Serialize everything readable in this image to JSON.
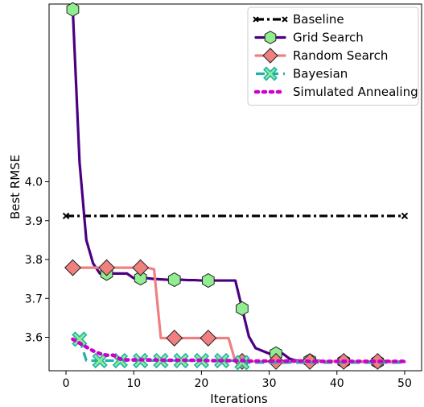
{
  "chart_data": {
    "type": "line",
    "title": "",
    "xlabel": "Iterations",
    "ylabel": "Best RMSE",
    "xlim": [
      -2.5,
      52.5
    ],
    "ylim": [
      3.514,
      4.457
    ],
    "xticks": [
      0,
      10,
      20,
      30,
      40,
      50
    ],
    "yticks": [
      3.6,
      3.7,
      3.8,
      3.9,
      4.0
    ],
    "grid": false,
    "legend_position": "top-right",
    "series": [
      {
        "name": "Baseline",
        "color": "#000000",
        "line_style": "dashdot",
        "marker": "x",
        "x": [
          0,
          50
        ],
        "y": [
          3.912,
          3.912
        ],
        "marker_x": [
          0,
          50
        ]
      },
      {
        "name": "Grid Search",
        "color": "#4b0082",
        "marker_fill": "#90ee90",
        "line_style": "solid",
        "marker": "hexagon",
        "x": [
          1,
          2,
          3,
          4,
          5,
          6,
          7,
          8,
          9,
          10,
          11,
          12,
          13,
          14,
          15,
          16,
          17,
          18,
          19,
          20,
          21,
          22,
          23,
          24,
          25,
          26,
          27,
          28,
          29,
          30,
          31,
          32,
          33,
          34,
          35,
          36,
          37,
          38,
          39,
          40,
          41,
          42,
          43,
          44,
          45,
          46,
          47,
          48,
          49,
          50
        ],
        "y": [
          4.443,
          4.05,
          3.85,
          3.79,
          3.764,
          3.764,
          3.764,
          3.764,
          3.764,
          3.752,
          3.752,
          3.752,
          3.75,
          3.749,
          3.748,
          3.748,
          3.748,
          3.747,
          3.747,
          3.746,
          3.746,
          3.746,
          3.746,
          3.746,
          3.746,
          3.674,
          3.602,
          3.572,
          3.565,
          3.558,
          3.558,
          3.558,
          3.545,
          3.54,
          3.54,
          3.54,
          3.54,
          3.538,
          3.538,
          3.538,
          3.538,
          3.538,
          3.538,
          3.537,
          3.537,
          3.537,
          3.537,
          3.537,
          3.537,
          3.537
        ],
        "marker_x": [
          1,
          6,
          11,
          16,
          21,
          26,
          31,
          36,
          41,
          46
        ]
      },
      {
        "name": "Random Search",
        "color": "#f08080",
        "marker_fill": "#f08080",
        "line_style": "solid",
        "marker": "diamond",
        "x": [
          1,
          2,
          3,
          4,
          5,
          6,
          7,
          8,
          9,
          10,
          11,
          12,
          13,
          14,
          15,
          16,
          17,
          18,
          19,
          20,
          21,
          22,
          23,
          24,
          25,
          26,
          27,
          28,
          29,
          30,
          31,
          32,
          33,
          34,
          35,
          36,
          37,
          38,
          39,
          40,
          41,
          42,
          43,
          44,
          45,
          46,
          47,
          48,
          49,
          50
        ],
        "y": [
          3.779,
          3.779,
          3.779,
          3.779,
          3.779,
          3.779,
          3.779,
          3.779,
          3.779,
          3.779,
          3.779,
          3.779,
          3.775,
          3.598,
          3.598,
          3.598,
          3.598,
          3.598,
          3.598,
          3.598,
          3.598,
          3.598,
          3.598,
          3.598,
          3.538,
          3.538,
          3.538,
          3.538,
          3.538,
          3.538,
          3.538,
          3.538,
          3.538,
          3.538,
          3.538,
          3.538,
          3.538,
          3.538,
          3.538,
          3.538,
          3.538,
          3.538,
          3.538,
          3.538,
          3.538,
          3.538,
          3.538,
          3.538,
          3.538,
          3.538
        ],
        "marker_x": [
          1,
          6,
          11,
          16,
          21,
          26,
          31,
          36,
          41,
          46
        ]
      },
      {
        "name": "Bayesian",
        "color": "#20b2aa",
        "marker_fill": "#90ee90",
        "line_style": "dashed",
        "marker": "X",
        "x": [
          2,
          3,
          4,
          5,
          6,
          7,
          8,
          9,
          10,
          11,
          12,
          13,
          14,
          15,
          16,
          17,
          18,
          19,
          20,
          21,
          22,
          23,
          24,
          25,
          26,
          27,
          28,
          29,
          30,
          31,
          32,
          33,
          34,
          35,
          36,
          37,
          38,
          39,
          40,
          41,
          42,
          43,
          44,
          45,
          46,
          47,
          48,
          49,
          50
        ],
        "y": [
          3.595,
          3.54,
          3.54,
          3.54,
          3.54,
          3.54,
          3.54,
          3.54,
          3.54,
          3.54,
          3.54,
          3.54,
          3.54,
          3.54,
          3.54,
          3.54,
          3.54,
          3.54,
          3.54,
          3.54,
          3.54,
          3.54,
          3.54,
          3.54,
          3.535,
          3.535,
          3.535,
          3.535,
          3.535,
          3.535,
          3.535,
          3.535,
          3.535,
          3.535,
          3.535,
          3.535,
          3.535,
          3.535,
          3.535,
          3.535,
          3.535,
          3.535,
          3.535,
          3.535,
          3.535,
          3.535,
          3.535,
          3.535,
          3.535
        ],
        "marker_x": [
          2,
          5,
          8,
          11,
          14,
          17,
          20,
          23,
          26
        ]
      },
      {
        "name": "Simulated Annealing",
        "color": "#cc00cc",
        "line_style": "dotted",
        "marker": "none",
        "x": [
          1,
          2,
          3,
          4,
          5,
          6,
          7,
          8,
          9,
          10,
          11,
          12,
          13,
          14,
          15,
          16,
          17,
          18,
          19,
          20,
          21,
          22,
          23,
          24,
          25,
          26,
          27,
          28,
          29,
          30,
          31,
          32,
          33,
          34,
          35,
          36,
          37,
          38,
          39,
          40,
          41,
          42,
          43,
          44,
          45,
          46,
          47,
          48,
          49,
          50
        ],
        "y": [
          3.595,
          3.585,
          3.575,
          3.565,
          3.558,
          3.554,
          3.554,
          3.544,
          3.542,
          3.542,
          3.542,
          3.542,
          3.542,
          3.541,
          3.541,
          3.541,
          3.541,
          3.541,
          3.541,
          3.541,
          3.54,
          3.54,
          3.54,
          3.54,
          3.54,
          3.54,
          3.539,
          3.539,
          3.539,
          3.539,
          3.539,
          3.539,
          3.539,
          3.539,
          3.539,
          3.538,
          3.538,
          3.538,
          3.538,
          3.538,
          3.538,
          3.538,
          3.538,
          3.538,
          3.538,
          3.538,
          3.538,
          3.538,
          3.538,
          3.538
        ],
        "marker_x": []
      }
    ]
  }
}
